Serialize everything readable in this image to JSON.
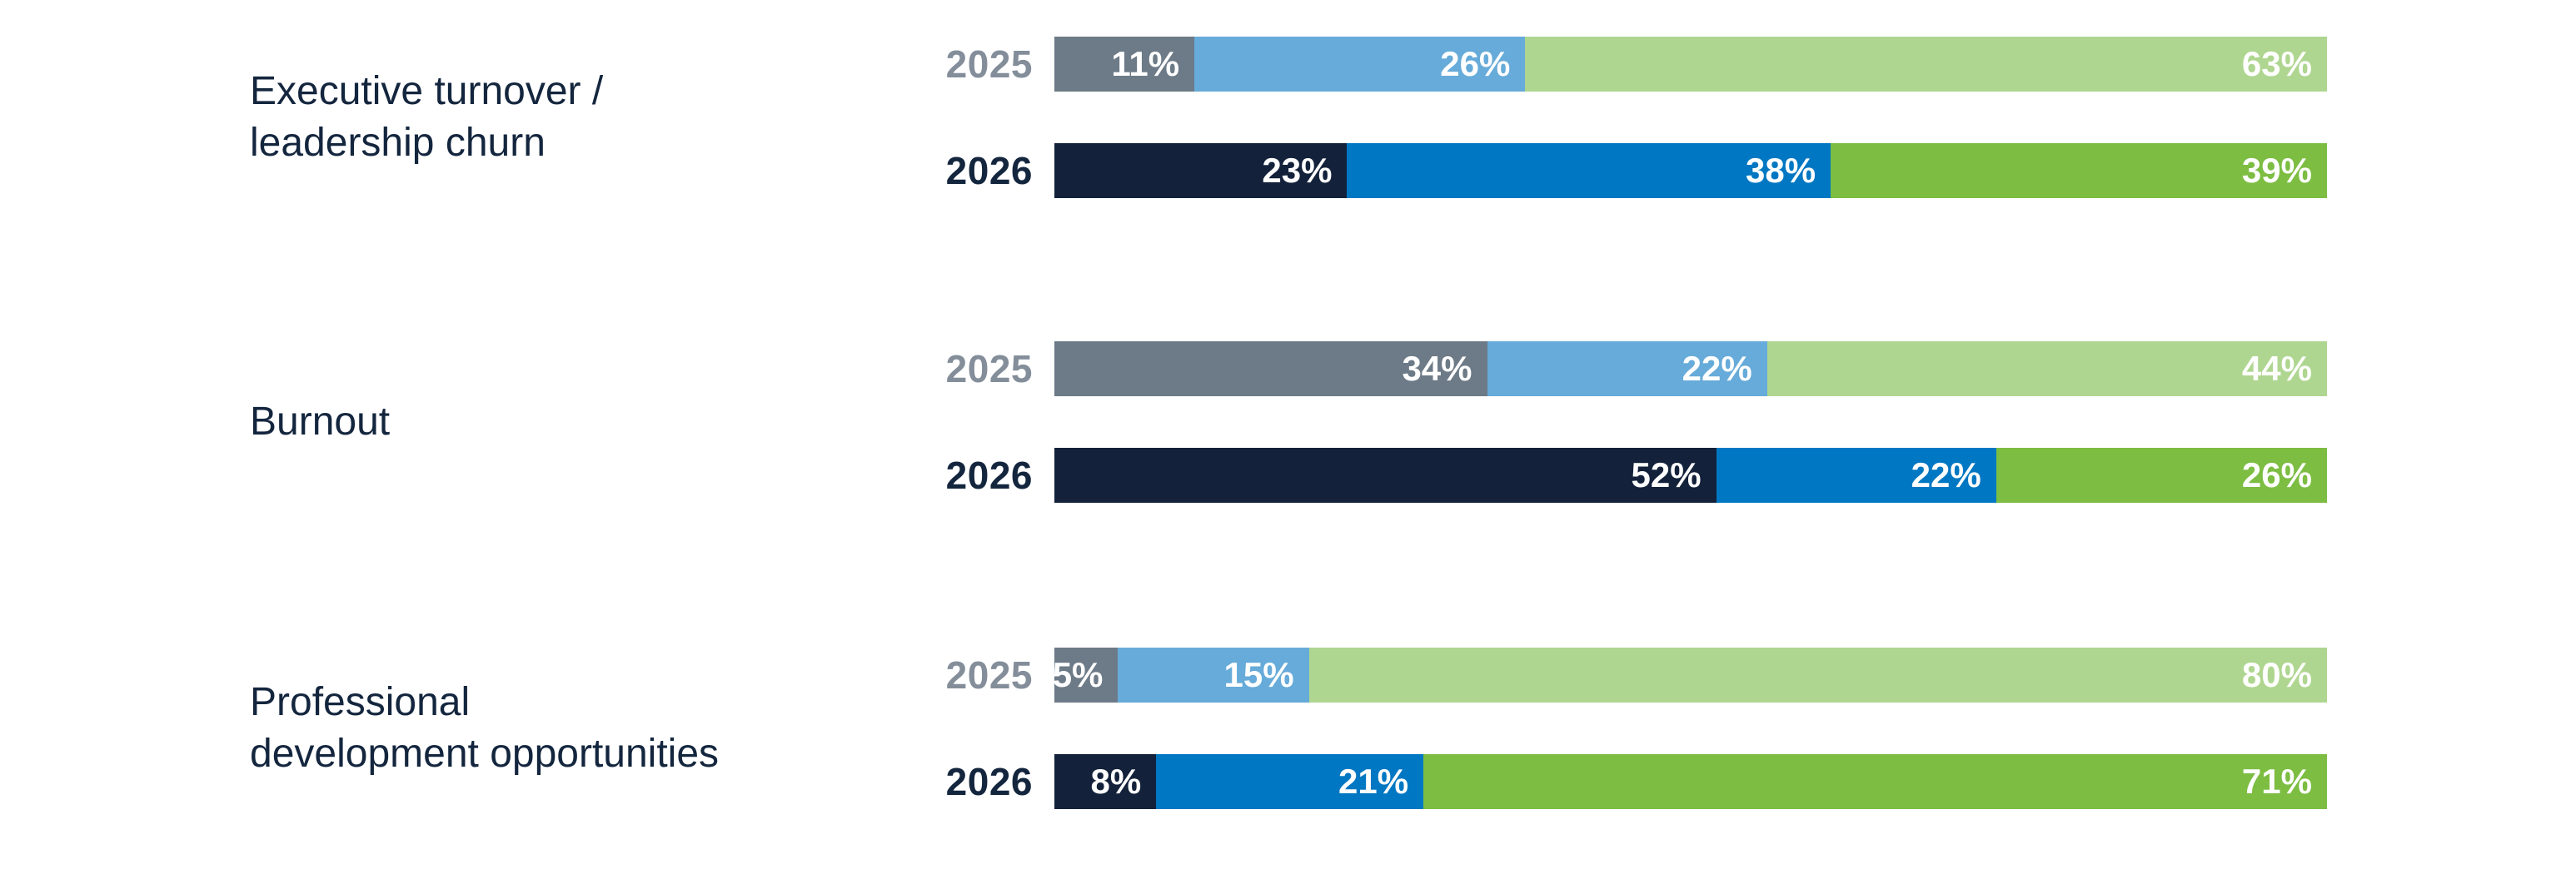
{
  "chart_data": {
    "type": "bar",
    "orientation": "horizontal",
    "stacked": true,
    "value_unit": "%",
    "xlim": [
      0,
      100
    ],
    "grid": false,
    "legend_position": "none",
    "series_years": [
      "2025",
      "2026"
    ],
    "palette": {
      "2025": [
        "#6D7A87",
        "#66ABD9",
        "#AFD690"
      ],
      "2026": [
        "#13213A",
        "#0077C2",
        "#7CBD42"
      ]
    },
    "year_label_colors": {
      "2025": "#848E9A",
      "2026": "#14263E"
    },
    "groups": [
      {
        "label": "Executive turnover /\nleadership churn",
        "rows": [
          {
            "year": "2025",
            "values": [
              11,
              26,
              63
            ]
          },
          {
            "year": "2026",
            "values": [
              23,
              38,
              39
            ]
          }
        ]
      },
      {
        "label": "Burnout",
        "rows": [
          {
            "year": "2025",
            "values": [
              34,
              22,
              44
            ]
          },
          {
            "year": "2026",
            "values": [
              52,
              22,
              26
            ]
          }
        ]
      },
      {
        "label": "Professional\ndevelopment opportunities",
        "rows": [
          {
            "year": "2025",
            "values": [
              5,
              15,
              80
            ]
          },
          {
            "year": "2026",
            "values": [
              8,
              21,
              71
            ]
          }
        ]
      }
    ]
  },
  "colors": {
    "background": "#FFFFFF",
    "category_text": "#14263E",
    "segment_value_text": "#FFFFFF"
  }
}
